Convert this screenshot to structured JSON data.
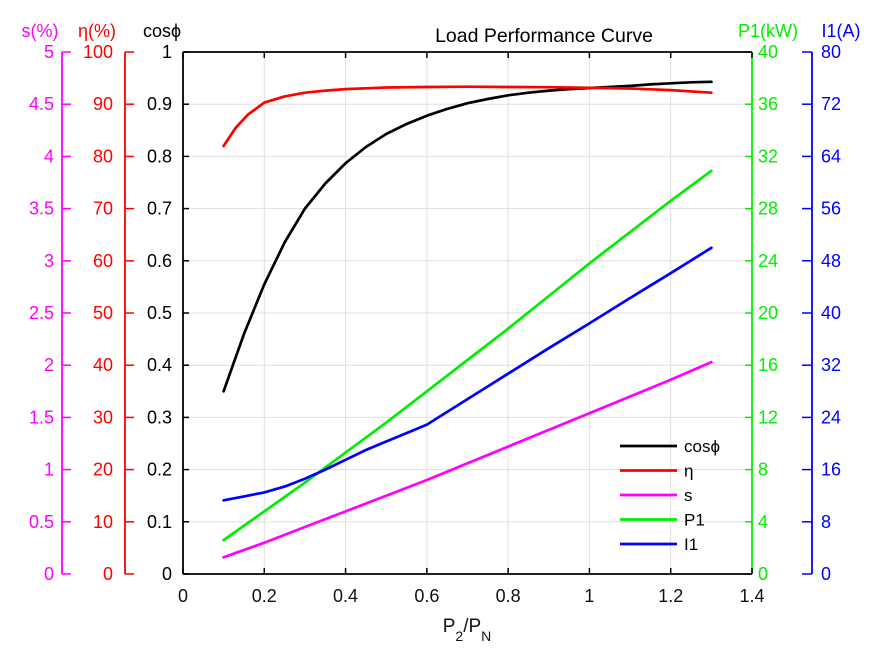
{
  "chart_data": {
    "type": "line",
    "title": "Load Performance Curve",
    "background": "#FFFFFF",
    "grid": true,
    "grid_color": "#E0E0E0",
    "x_axis": {
      "title": "P2/PN",
      "label_parts": [
        "P",
        "2",
        "/P",
        "N"
      ],
      "min": 0,
      "max": 1.4,
      "ticks": [
        "0",
        "0.2",
        "0.4",
        "0.6",
        "0.8",
        "1",
        "1.2",
        "1.4"
      ]
    },
    "y_axes": [
      {
        "id": "s",
        "label": "s(%)",
        "color": "#FF00FF",
        "min": 0,
        "max": 5,
        "ticks": [
          "0",
          "0.5",
          "1",
          "1.5",
          "2",
          "2.5",
          "3",
          "3.5",
          "4",
          "4.5",
          "5"
        ]
      },
      {
        "id": "eta",
        "label": "η(%)",
        "color": "#FF0000",
        "min": 0,
        "max": 100,
        "ticks": [
          "0",
          "10",
          "20",
          "30",
          "40",
          "50",
          "60",
          "70",
          "80",
          "90",
          "100"
        ]
      },
      {
        "id": "cos",
        "label": "cosϕ",
        "color": "#000000",
        "min": 0,
        "max": 1,
        "ticks": [
          "0",
          "0.1",
          "0.2",
          "0.3",
          "0.4",
          "0.5",
          "0.6",
          "0.7",
          "0.8",
          "0.9",
          "1"
        ]
      },
      {
        "id": "p1",
        "label": "P1(kW)",
        "color": "#00EE00",
        "min": 0,
        "max": 40,
        "ticks": [
          "0",
          "4",
          "8",
          "12",
          "16",
          "20",
          "24",
          "28",
          "32",
          "36",
          "40"
        ]
      },
      {
        "id": "i1",
        "label": "I1(A)",
        "color": "#0000FF",
        "min": 0,
        "max": 80,
        "ticks": [
          "0",
          "8",
          "16",
          "24",
          "32",
          "40",
          "48",
          "56",
          "64",
          "72",
          "80"
        ]
      }
    ],
    "series": [
      {
        "name": "cosϕ",
        "axis": "cos",
        "color": "#000000",
        "x": [
          0.1,
          0.15,
          0.2,
          0.25,
          0.3,
          0.35,
          0.4,
          0.45,
          0.5,
          0.55,
          0.6,
          0.65,
          0.7,
          0.75,
          0.8,
          0.85,
          0.9,
          0.95,
          1.0,
          1.05,
          1.1,
          1.15,
          1.2,
          1.25,
          1.3
        ],
        "y": [
          0.35,
          0.46,
          0.555,
          0.635,
          0.7,
          0.748,
          0.787,
          0.818,
          0.843,
          0.862,
          0.878,
          0.891,
          0.902,
          0.91,
          0.917,
          0.922,
          0.926,
          0.929,
          0.931,
          0.933,
          0.935,
          0.938,
          0.94,
          0.942,
          0.943
        ]
      },
      {
        "name": "η",
        "axis": "eta",
        "color": "#FF0000",
        "x": [
          0.1,
          0.13,
          0.16,
          0.2,
          0.25,
          0.3,
          0.35,
          0.4,
          0.5,
          0.6,
          0.7,
          0.8,
          0.9,
          1.0,
          1.1,
          1.2,
          1.3
        ],
        "y": [
          82,
          85.5,
          88,
          90.3,
          91.5,
          92.2,
          92.6,
          92.9,
          93.2,
          93.3,
          93.35,
          93.3,
          93.25,
          93.15,
          93.0,
          92.7,
          92.2
        ]
      },
      {
        "name": "s",
        "axis": "s",
        "color": "#FF00FF",
        "x": [
          0.1,
          0.2,
          0.3,
          0.4,
          0.5,
          0.6,
          0.7,
          0.8,
          0.9,
          1.0,
          1.1,
          1.2,
          1.3
        ],
        "y": [
          0.16,
          0.3,
          0.45,
          0.6,
          0.75,
          0.9,
          1.06,
          1.22,
          1.38,
          1.54,
          1.7,
          1.86,
          2.03
        ]
      },
      {
        "name": "P1",
        "axis": "p1",
        "color": "#00EE00",
        "x": [
          0.1,
          0.2,
          0.3,
          0.4,
          0.5,
          0.6,
          0.7,
          0.8,
          0.9,
          1.0,
          1.1,
          1.2,
          1.3
        ],
        "y": [
          2.6,
          4.8,
          7.0,
          9.3,
          11.6,
          14.0,
          16.4,
          18.8,
          21.3,
          23.8,
          26.2,
          28.6,
          30.9
        ]
      },
      {
        "name": "I1",
        "axis": "i1",
        "color": "#0000FF",
        "x": [
          0.1,
          0.15,
          0.2,
          0.25,
          0.3,
          0.35,
          0.4,
          0.45,
          0.5,
          0.55,
          0.6,
          0.7,
          0.8,
          0.9,
          1.0,
          1.1,
          1.2,
          1.3
        ],
        "y": [
          11.3,
          11.9,
          12.5,
          13.4,
          14.6,
          16.0,
          17.5,
          19.0,
          20.3,
          21.6,
          22.9,
          26.8,
          30.7,
          34.6,
          38.4,
          42.3,
          46.1,
          50.0
        ]
      }
    ],
    "legend": {
      "position": "lower-right",
      "box": false,
      "entries": [
        "cosϕ",
        "η",
        "s",
        "P1",
        "I1"
      ]
    }
  }
}
